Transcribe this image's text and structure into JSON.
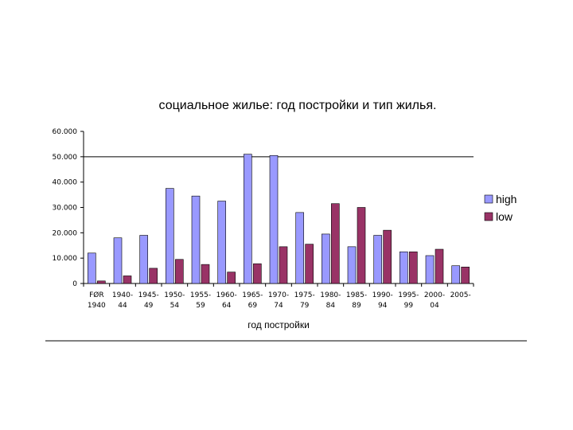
{
  "chart_data": {
    "type": "bar",
    "title": "социальное жилье: год постройки и тип жилья.",
    "xlabel": "год постройки",
    "ylabel": "",
    "categories": [
      [
        "FØR",
        "1940"
      ],
      [
        "1940-",
        "44"
      ],
      [
        "1945-",
        "49"
      ],
      [
        "1950-",
        "54"
      ],
      [
        "1955-",
        "59"
      ],
      [
        "1960-",
        "64"
      ],
      [
        "1965-",
        "69"
      ],
      [
        "1970-",
        "74"
      ],
      [
        "1975-",
        "79"
      ],
      [
        "1980-",
        "84"
      ],
      [
        "1985-",
        "89"
      ],
      [
        "1990-",
        "94"
      ],
      [
        "1995-",
        "99"
      ],
      [
        "2000-",
        "04"
      ],
      [
        "2005-",
        ""
      ]
    ],
    "series": [
      {
        "name": "high",
        "color": "#9999ff",
        "values": [
          12000,
          18000,
          19000,
          37500,
          34500,
          32500,
          51000,
          50500,
          28000,
          19500,
          14500,
          19000,
          12500,
          11000,
          7000
        ]
      },
      {
        "name": "low",
        "color": "#993366",
        "values": [
          1000,
          3000,
          6000,
          9500,
          7500,
          4500,
          7800,
          14500,
          15500,
          31500,
          30000,
          21000,
          12500,
          13500,
          6500
        ]
      }
    ],
    "ylim": [
      0,
      60000
    ],
    "yticks": [
      0,
      10000,
      20000,
      30000,
      40000,
      50000,
      60000
    ],
    "ytick_labels": [
      "0",
      "10.000",
      "20.000",
      "30.000",
      "40.000",
      "50.000",
      "60.000"
    ],
    "reference_line": 50000,
    "grid": false,
    "legend_position": "right"
  }
}
